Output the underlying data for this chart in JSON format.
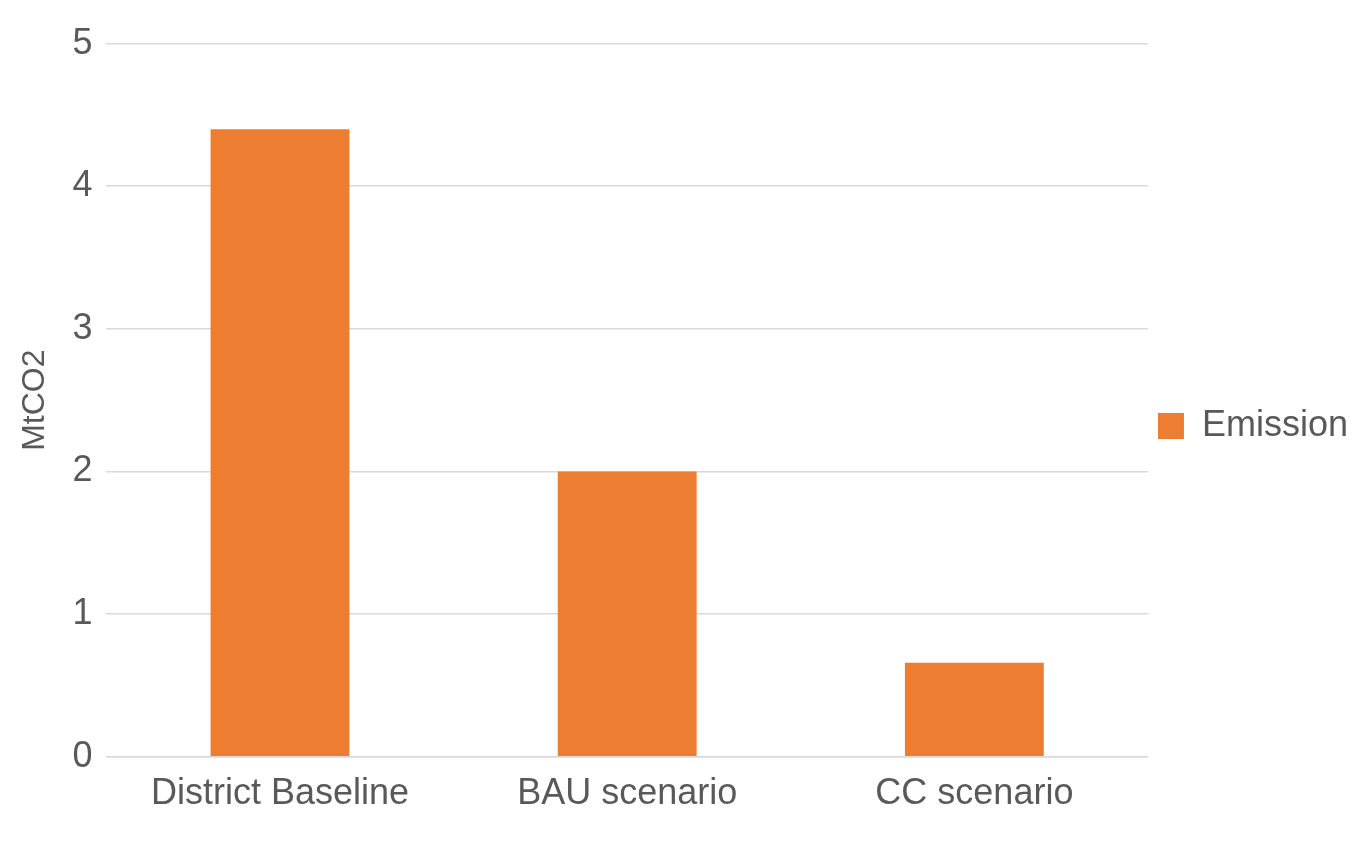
{
  "chart_data": {
    "type": "bar",
    "ylabel": "MtCO2",
    "categories": [
      "District Baseline",
      "BAU scenario",
      "CC scenario"
    ],
    "series": [
      {
        "name": "Emission",
        "color": "#ed7d31",
        "values": [
          4.4,
          2.0,
          0.66
        ]
      }
    ],
    "ylim": [
      0,
      5
    ],
    "yticks": [
      0,
      1,
      2,
      3,
      4,
      5
    ],
    "grid": "y",
    "legend": "right"
  }
}
